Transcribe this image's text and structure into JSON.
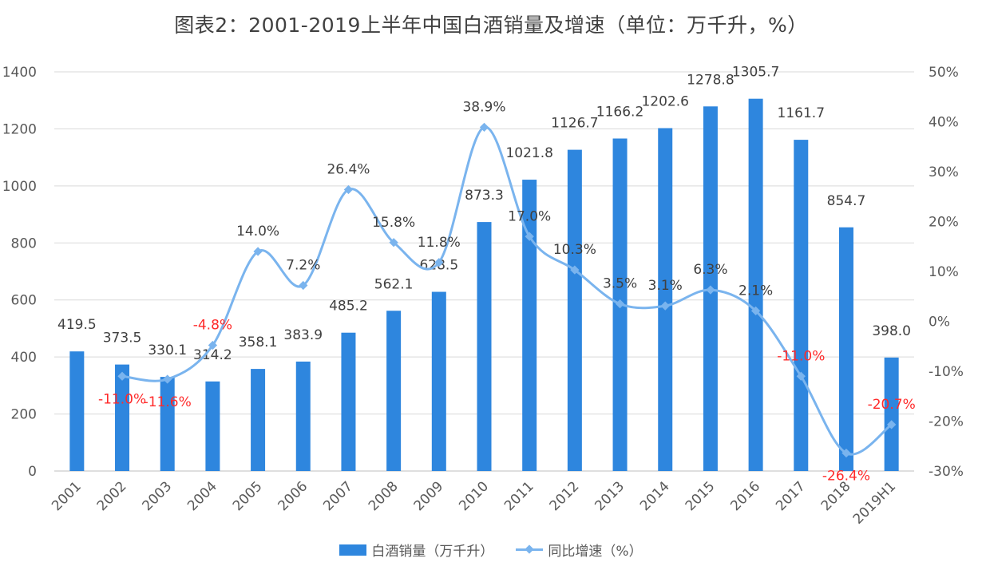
{
  "chart_data": {
    "type": "bar",
    "title": "图表2：2001-2019上半年中国白酒销量及增速（单位：万千升，%）",
    "categories": [
      "2001",
      "2002",
      "2003",
      "2004",
      "2005",
      "2006",
      "2007",
      "2008",
      "2009",
      "2010",
      "2011",
      "2012",
      "2013",
      "2014",
      "2015",
      "2016",
      "2017",
      "2018",
      "2019H1"
    ],
    "series": [
      {
        "name": "白酒销量（万千升）",
        "type": "bar",
        "axis": "left",
        "color": "#2e86de",
        "values": [
          419.5,
          373.5,
          330.1,
          314.2,
          358.1,
          383.9,
          485.2,
          562.1,
          628.5,
          873.3,
          1021.8,
          1126.7,
          1166.2,
          1202.6,
          1278.8,
          1305.7,
          1161.7,
          854.7,
          398.0
        ],
        "labels": [
          "419.5",
          "373.5",
          "330.1",
          "314.2",
          "358.1",
          "383.9",
          "485.2",
          "562.1",
          "628.5",
          "873.3",
          "1021.8",
          "1126.7",
          "1166.2",
          "1202.6",
          "1278.8",
          "1305.7",
          "1161.7",
          "854.7",
          "398.0"
        ]
      },
      {
        "name": "同比增速（%）",
        "type": "line",
        "axis": "right",
        "color": "#7ab4ee",
        "smooth": true,
        "values": [
          null,
          -11.0,
          -11.6,
          -4.8,
          14.0,
          7.2,
          26.4,
          15.8,
          11.8,
          38.9,
          17.0,
          10.3,
          3.5,
          3.1,
          6.3,
          2.1,
          -11.0,
          -26.4,
          -20.7
        ],
        "labels": [
          "",
          "-11.0%",
          "-11.6%",
          "-4.8%",
          "14.0%",
          "7.2%",
          "26.4%",
          "15.8%",
          "11.8%",
          "38.9%",
          "17.0%",
          "10.3%",
          "3.5%",
          "3.1%",
          "6.3%",
          "2.1%",
          "-11.0%",
          "-26.4%",
          "-20.7%"
        ]
      }
    ],
    "ylim": [
      0,
      1400
    ],
    "yticks": [
      "0",
      "200",
      "400",
      "600",
      "800",
      "1000",
      "1200",
      "1400"
    ],
    "y2lim": [
      -30,
      50
    ],
    "y2ticks": [
      "-30%",
      "-20%",
      "-10%",
      "0%",
      "10%",
      "20%",
      "30%",
      "40%",
      "50%"
    ],
    "grid": true,
    "legend_position": "bottom",
    "negative_label_color": "#ff2a2a",
    "xlabel": "",
    "ylabel": ""
  },
  "legend": {
    "bar": "白酒销量（万千升）",
    "line": "同比增速（%）"
  }
}
